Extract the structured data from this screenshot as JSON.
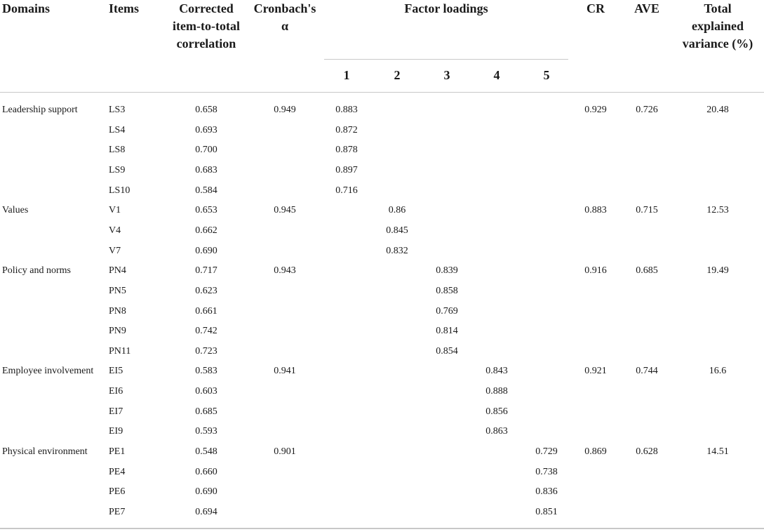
{
  "headers": {
    "domains": "Domains",
    "items": "Items",
    "corrected": [
      "Corrected",
      "item-to-total",
      "correlation"
    ],
    "cronbach": [
      "Cronbach's",
      "α"
    ],
    "factor_loadings": "Factor loadings",
    "factors": [
      "1",
      "2",
      "3",
      "4",
      "5"
    ],
    "cr": "CR",
    "ave": "AVE",
    "total": [
      "Total",
      "explained",
      "variance (%)"
    ]
  },
  "rows": [
    {
      "domain": "Leadership support",
      "item": "LS3",
      "corr": "0.658",
      "alpha": "0.949",
      "factor": 1,
      "loading": "0.883",
      "cr": "0.929",
      "ave": "0.726",
      "variance": "20.48"
    },
    {
      "domain": "",
      "item": "LS4",
      "corr": "0.693",
      "alpha": "",
      "factor": 1,
      "loading": "0.872",
      "cr": "",
      "ave": "",
      "variance": ""
    },
    {
      "domain": "",
      "item": "LS8",
      "corr": "0.700",
      "alpha": "",
      "factor": 1,
      "loading": "0.878",
      "cr": "",
      "ave": "",
      "variance": ""
    },
    {
      "domain": "",
      "item": "LS9",
      "corr": "0.683",
      "alpha": "",
      "factor": 1,
      "loading": "0.897",
      "cr": "",
      "ave": "",
      "variance": ""
    },
    {
      "domain": "",
      "item": "LS10",
      "corr": "0.584",
      "alpha": "",
      "factor": 1,
      "loading": "0.716",
      "cr": "",
      "ave": "",
      "variance": ""
    },
    {
      "domain": "Values",
      "item": "V1",
      "corr": "0.653",
      "alpha": "0.945",
      "factor": 2,
      "loading": "0.86",
      "cr": "0.883",
      "ave": "0.715",
      "variance": "12.53"
    },
    {
      "domain": "",
      "item": "V4",
      "corr": "0.662",
      "alpha": "",
      "factor": 2,
      "loading": "0.845",
      "cr": "",
      "ave": "",
      "variance": ""
    },
    {
      "domain": "",
      "item": "V7",
      "corr": "0.690",
      "alpha": "",
      "factor": 2,
      "loading": "0.832",
      "cr": "",
      "ave": "",
      "variance": ""
    },
    {
      "domain": "Policy and norms",
      "item": "PN4",
      "corr": "0.717",
      "alpha": "0.943",
      "factor": 3,
      "loading": "0.839",
      "cr": "0.916",
      "ave": "0.685",
      "variance": "19.49"
    },
    {
      "domain": "",
      "item": "PN5",
      "corr": "0.623",
      "alpha": "",
      "factor": 3,
      "loading": "0.858",
      "cr": "",
      "ave": "",
      "variance": ""
    },
    {
      "domain": "",
      "item": "PN8",
      "corr": "0.661",
      "alpha": "",
      "factor": 3,
      "loading": "0.769",
      "cr": "",
      "ave": "",
      "variance": ""
    },
    {
      "domain": "",
      "item": "PN9",
      "corr": "0.742",
      "alpha": "",
      "factor": 3,
      "loading": "0.814",
      "cr": "",
      "ave": "",
      "variance": ""
    },
    {
      "domain": "",
      "item": "PN11",
      "corr": "0.723",
      "alpha": "",
      "factor": 3,
      "loading": "0.854",
      "cr": "",
      "ave": "",
      "variance": ""
    },
    {
      "domain": "Employee involvement",
      "item": "EI5",
      "corr": "0.583",
      "alpha": "0.941",
      "factor": 4,
      "loading": "0.843",
      "cr": "0.921",
      "ave": "0.744",
      "variance": "16.6"
    },
    {
      "domain": "",
      "item": "EI6",
      "corr": "0.603",
      "alpha": "",
      "factor": 4,
      "loading": "0.888",
      "cr": "",
      "ave": "",
      "variance": ""
    },
    {
      "domain": "",
      "item": "EI7",
      "corr": "0.685",
      "alpha": "",
      "factor": 4,
      "loading": "0.856",
      "cr": "",
      "ave": "",
      "variance": ""
    },
    {
      "domain": "",
      "item": "EI9",
      "corr": "0.593",
      "alpha": "",
      "factor": 4,
      "loading": "0.863",
      "cr": "",
      "ave": "",
      "variance": ""
    },
    {
      "domain": "Physical environment",
      "item": "PE1",
      "corr": "0.548",
      "alpha": "0.901",
      "factor": 5,
      "loading": "0.729",
      "cr": "0.869",
      "ave": "0.628",
      "variance": "14.51"
    },
    {
      "domain": "",
      "item": "PE4",
      "corr": "0.660",
      "alpha": "",
      "factor": 5,
      "loading": "0.738",
      "cr": "",
      "ave": "",
      "variance": ""
    },
    {
      "domain": "",
      "item": "PE6",
      "corr": "0.690",
      "alpha": "",
      "factor": 5,
      "loading": "0.836",
      "cr": "",
      "ave": "",
      "variance": ""
    },
    {
      "domain": "",
      "item": "PE7",
      "corr": "0.694",
      "alpha": "",
      "factor": 5,
      "loading": "0.851",
      "cr": "",
      "ave": "",
      "variance": ""
    }
  ]
}
